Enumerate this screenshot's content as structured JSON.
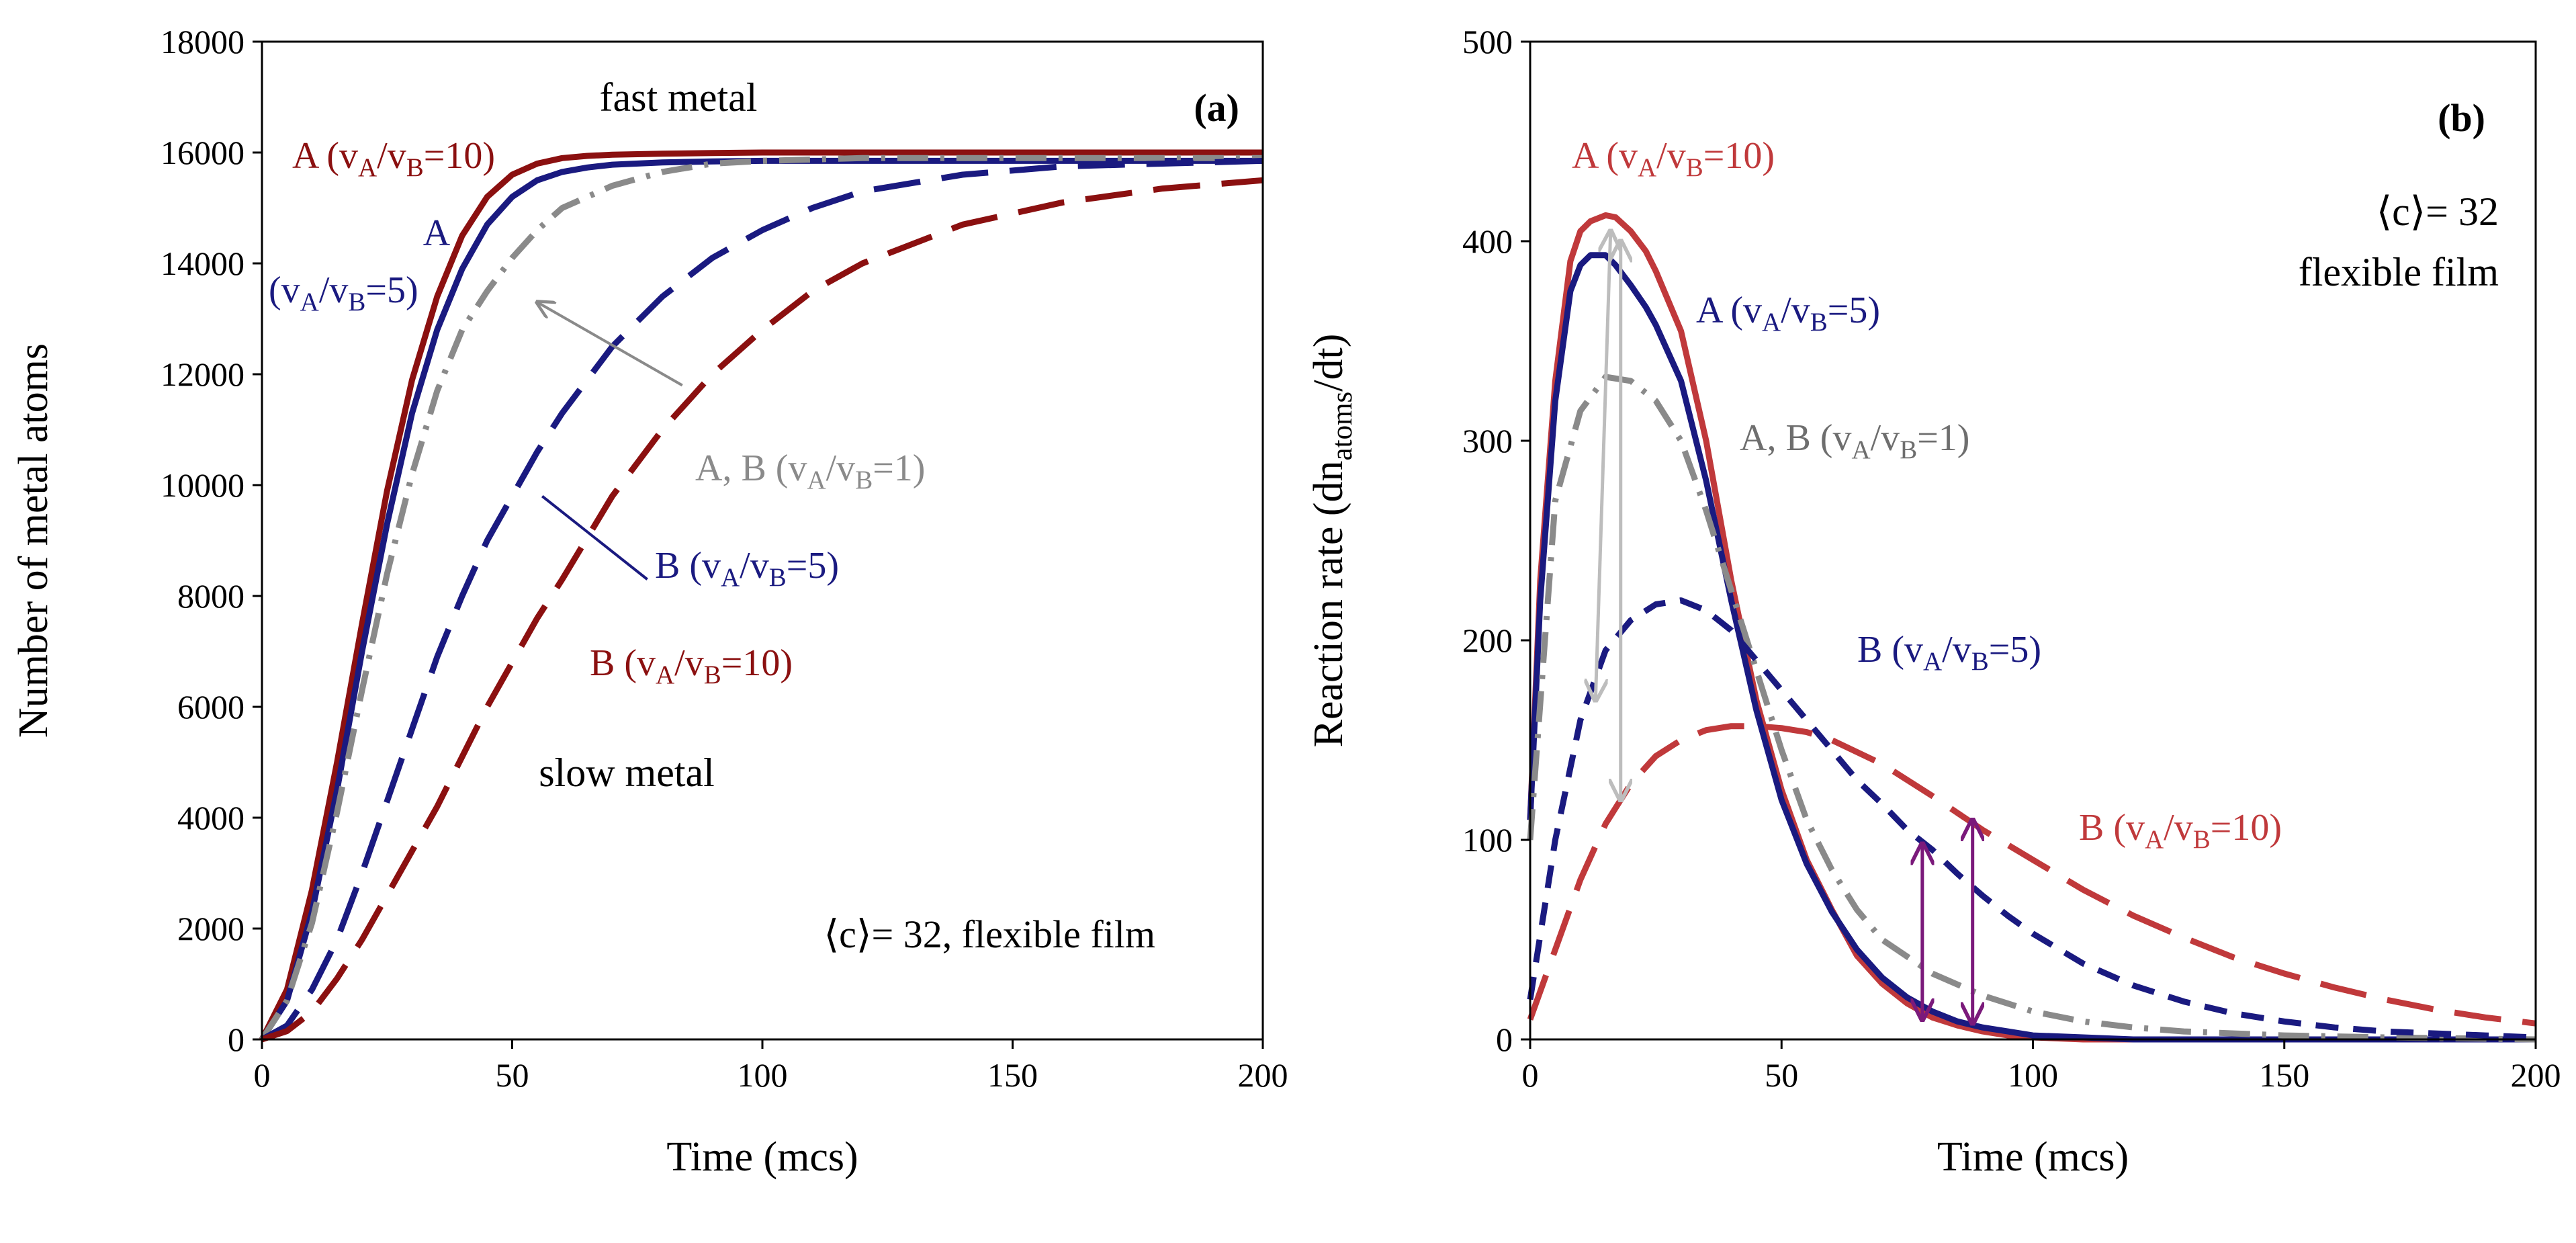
{
  "chart_data": [
    {
      "id": "a",
      "type": "line",
      "panel_label": "(a)",
      "xlabel": "Time (mcs)",
      "ylabel": "Number of metal atoms",
      "xlim": [
        0,
        200
      ],
      "ylim": [
        0,
        18000
      ],
      "xticks": [
        0,
        50,
        100,
        150,
        200
      ],
      "yticks": [
        0,
        2000,
        4000,
        6000,
        8000,
        10000,
        12000,
        14000,
        16000,
        18000
      ],
      "grid": false,
      "annotations": {
        "fast": "fast metal",
        "slow": "slow metal",
        "condition": "⟨c⟩= 32, flexible film",
        "A10": "A (v_A/v_B=10)",
        "A5_line1": "A",
        "A5_line2": "(v_A/v_B=5)",
        "AB1": "A, B (v_A/v_B=1)",
        "B5": "B (v_A/v_B=5)",
        "B10": "B (v_A/v_B=10)"
      },
      "series": [
        {
          "name": "A (vA/vB=10)",
          "color": "#8b1010",
          "dash": "solid",
          "x": [
            0,
            5,
            10,
            15,
            20,
            25,
            30,
            35,
            40,
            45,
            50,
            55,
            60,
            65,
            70,
            80,
            90,
            100,
            120,
            150,
            200
          ],
          "y": [
            0,
            900,
            2700,
            5000,
            7500,
            9900,
            11900,
            13400,
            14500,
            15200,
            15600,
            15800,
            15900,
            15940,
            15960,
            15980,
            15990,
            16000,
            16000,
            16000,
            16000
          ]
        },
        {
          "name": "A (vA/vB=5)",
          "color": "#1a1a80",
          "dash": "solid",
          "x": [
            0,
            5,
            10,
            15,
            20,
            25,
            30,
            35,
            40,
            45,
            50,
            55,
            60,
            65,
            70,
            80,
            90,
            100,
            120,
            150,
            200
          ],
          "y": [
            0,
            700,
            2300,
            4500,
            7000,
            9300,
            11300,
            12800,
            13900,
            14700,
            15200,
            15500,
            15650,
            15730,
            15780,
            15820,
            15840,
            15850,
            15850,
            15850,
            15850
          ]
        },
        {
          "name": "A, B (vA/vB=1)",
          "color": "#8a8a8a",
          "dash": "dashdot",
          "x": [
            0,
            5,
            10,
            15,
            20,
            25,
            30,
            35,
            40,
            45,
            50,
            55,
            60,
            70,
            80,
            90,
            100,
            120,
            150,
            200
          ],
          "y": [
            0,
            700,
            2100,
            4100,
            6300,
            8400,
            10200,
            11700,
            12800,
            13500,
            14100,
            14600,
            15000,
            15400,
            15650,
            15800,
            15850,
            15900,
            15900,
            15900
          ]
        },
        {
          "name": "B (vA/vB=5)",
          "color": "#1a1a80",
          "dash": "longdash",
          "x": [
            0,
            5,
            10,
            15,
            20,
            25,
            30,
            35,
            40,
            45,
            50,
            55,
            60,
            70,
            80,
            90,
            100,
            110,
            120,
            140,
            160,
            180,
            200
          ],
          "y": [
            0,
            250,
            900,
            1800,
            3000,
            4300,
            5600,
            6900,
            8000,
            9000,
            9800,
            10600,
            11300,
            12500,
            13400,
            14100,
            14600,
            15000,
            15300,
            15600,
            15750,
            15800,
            15850
          ]
        },
        {
          "name": "B (vA/vB=10)",
          "color": "#8b1010",
          "dash": "longdash",
          "x": [
            0,
            5,
            10,
            15,
            20,
            25,
            30,
            35,
            40,
            45,
            50,
            55,
            60,
            70,
            80,
            90,
            100,
            110,
            120,
            140,
            160,
            180,
            200
          ],
          "y": [
            0,
            150,
            500,
            1100,
            1800,
            2600,
            3400,
            4200,
            5100,
            6000,
            6800,
            7600,
            8300,
            9800,
            11000,
            12000,
            12800,
            13500,
            14000,
            14700,
            15100,
            15350,
            15500
          ]
        }
      ]
    },
    {
      "id": "b",
      "type": "line",
      "panel_label": "(b)",
      "xlabel": "Time (mcs)",
      "ylabel": "Reaction rate (dn_atoms/dt)",
      "xlim": [
        0,
        200
      ],
      "ylim": [
        0,
        500
      ],
      "xticks": [
        0,
        50,
        100,
        150,
        200
      ],
      "yticks": [
        0,
        100,
        200,
        300,
        400,
        500
      ],
      "grid": false,
      "annotations": {
        "condition_line1": "⟨c⟩= 32",
        "condition_line2": "flexible film",
        "A10": "A (v_A/v_B=10)",
        "A5": "A (v_A/v_B=5)",
        "AB1": "A, B (v_A/v_B=1)",
        "B5": "B (v_A/v_B=5)",
        "B10": "B (v_A/v_B=10)"
      },
      "series": [
        {
          "name": "A (vA/vB=10)",
          "color": "#c0393b",
          "dash": "solid",
          "x": [
            0,
            2,
            5,
            8,
            10,
            12,
            15,
            17,
            20,
            23,
            25,
            30,
            35,
            40,
            45,
            50,
            55,
            60,
            65,
            70,
            75,
            80,
            85,
            90,
            95,
            100,
            110,
            120,
            150,
            200
          ],
          "y": [
            110,
            230,
            330,
            390,
            405,
            410,
            413,
            412,
            405,
            395,
            385,
            355,
            300,
            230,
            170,
            125,
            90,
            65,
            42,
            28,
            18,
            11,
            7,
            4,
            2,
            1,
            0,
            0,
            0,
            0
          ]
        },
        {
          "name": "A (vA/vB=5)",
          "color": "#1a1a80",
          "dash": "solid",
          "x": [
            0,
            2,
            5,
            8,
            10,
            12,
            15,
            17,
            20,
            23,
            25,
            30,
            35,
            40,
            45,
            50,
            55,
            60,
            65,
            70,
            75,
            80,
            85,
            90,
            95,
            100,
            110,
            120,
            150,
            200
          ],
          "y": [
            110,
            220,
            320,
            375,
            388,
            393,
            393,
            388,
            378,
            367,
            358,
            330,
            280,
            220,
            165,
            120,
            88,
            64,
            45,
            31,
            21,
            14,
            9,
            6,
            4,
            2,
            1,
            0,
            0,
            0
          ]
        },
        {
          "name": "A, B (vA/vB=1)",
          "color": "#8a8a8a",
          "dash": "dashdot",
          "x": [
            0,
            5,
            10,
            15,
            20,
            25,
            30,
            35,
            40,
            45,
            50,
            55,
            60,
            65,
            70,
            80,
            90,
            100,
            110,
            120,
            130,
            140,
            150,
            170,
            200
          ],
          "y": [
            100,
            270,
            315,
            332,
            330,
            320,
            300,
            265,
            225,
            185,
            145,
            110,
            85,
            65,
            50,
            33,
            22,
            14,
            9,
            6,
            4,
            3,
            2,
            1,
            0
          ]
        },
        {
          "name": "B (vA/vB=5)",
          "color": "#1a1a80",
          "dash": "shortdash",
          "x": [
            0,
            5,
            10,
            15,
            20,
            25,
            30,
            35,
            40,
            45,
            50,
            55,
            60,
            65,
            70,
            75,
            80,
            85,
            90,
            95,
            100,
            110,
            120,
            130,
            140,
            150,
            160,
            170,
            180,
            190,
            200
          ],
          "y": [
            20,
            100,
            160,
            195,
            210,
            218,
            220,
            215,
            205,
            190,
            175,
            160,
            145,
            130,
            118,
            105,
            95,
            83,
            72,
            62,
            53,
            38,
            27,
            19,
            13,
            9,
            6,
            4,
            3,
            2,
            1
          ]
        },
        {
          "name": "B (vA/vB=10)",
          "color": "#c0393b",
          "dash": "longdash",
          "x": [
            0,
            5,
            10,
            15,
            20,
            25,
            30,
            35,
            40,
            45,
            50,
            55,
            60,
            70,
            80,
            90,
            100,
            110,
            120,
            130,
            140,
            150,
            160,
            170,
            180,
            190,
            200
          ],
          "y": [
            10,
            45,
            80,
            108,
            128,
            142,
            150,
            155,
            157,
            157,
            156,
            154,
            150,
            138,
            122,
            105,
            90,
            75,
            62,
            51,
            41,
            33,
            26,
            20,
            15,
            11,
            8
          ]
        }
      ]
    }
  ]
}
